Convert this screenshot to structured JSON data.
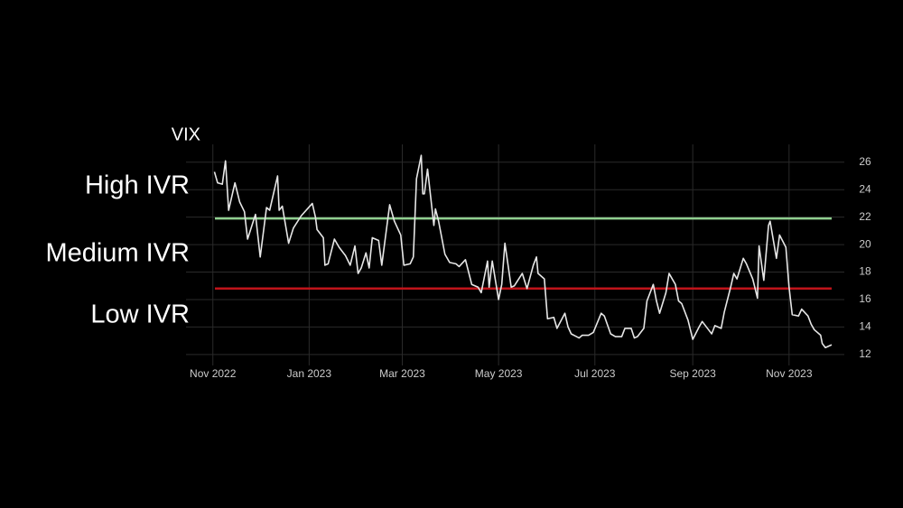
{
  "chart_data": {
    "type": "line",
    "ylabel": "VIX",
    "annotations": [
      "High IVR",
      "Medium IVR",
      "Low IVR"
    ],
    "xlim": [
      "2022-10-15",
      "2023-12-06"
    ],
    "xticks": [
      {
        "value": "2022-11-01",
        "label": "Nov 2022"
      },
      {
        "value": "2023-01-01",
        "label": "Jan 2023"
      },
      {
        "value": "2023-03-01",
        "label": "Mar 2023"
      },
      {
        "value": "2023-05-01",
        "label": "May 2023"
      },
      {
        "value": "2023-07-01",
        "label": "Jul 2023"
      },
      {
        "value": "2023-09-01",
        "label": "Sep 2023"
      },
      {
        "value": "2023-11-01",
        "label": "Nov 2023"
      }
    ],
    "ylim": [
      11.2,
      27.3
    ],
    "yticks": [
      12,
      14,
      16,
      18,
      20,
      22,
      24,
      26
    ],
    "grid": true,
    "hlines": [
      {
        "value": 21.9,
        "color": "#8fcf8f"
      },
      {
        "value": 16.8,
        "color": "#c0141a"
      }
    ],
    "x": [
      "2022-11-02",
      "2022-11-04",
      "2022-11-07",
      "2022-11-09",
      "2022-11-11",
      "2022-11-15",
      "2022-11-18",
      "2022-11-21",
      "2022-11-23",
      "2022-11-28",
      "2022-12-01",
      "2022-12-05",
      "2022-12-07",
      "2022-12-12",
      "2022-12-13",
      "2022-12-15",
      "2022-12-19",
      "2022-12-22",
      "2022-12-27",
      "2023-01-03",
      "2023-01-05",
      "2023-01-06",
      "2023-01-10",
      "2023-01-11",
      "2023-01-13",
      "2023-01-17",
      "2023-01-20",
      "2023-01-24",
      "2023-01-27",
      "2023-01-30",
      "2023-02-01",
      "2023-02-03",
      "2023-02-06",
      "2023-02-08",
      "2023-02-10",
      "2023-02-14",
      "2023-02-16",
      "2023-02-21",
      "2023-02-24",
      "2023-02-28",
      "2023-03-02",
      "2023-03-06",
      "2023-03-08",
      "2023-03-10",
      "2023-03-13",
      "2023-03-14",
      "2023-03-15",
      "2023-03-17",
      "2023-03-21",
      "2023-03-22",
      "2023-03-24",
      "2023-03-28",
      "2023-03-31",
      "2023-04-04",
      "2023-04-06",
      "2023-04-10",
      "2023-04-14",
      "2023-04-18",
      "2023-04-20",
      "2023-04-24",
      "2023-04-25",
      "2023-04-27",
      "2023-05-01",
      "2023-05-03",
      "2023-05-05",
      "2023-05-09",
      "2023-05-11",
      "2023-05-16",
      "2023-05-19",
      "2023-05-23",
      "2023-05-25",
      "2023-05-26",
      "2023-05-30",
      "2023-06-01",
      "2023-06-05",
      "2023-06-07",
      "2023-06-12",
      "2023-06-14",
      "2023-06-16",
      "2023-06-21",
      "2023-06-23",
      "2023-06-27",
      "2023-06-30",
      "2023-07-05",
      "2023-07-07",
      "2023-07-11",
      "2023-07-14",
      "2023-07-18",
      "2023-07-20",
      "2023-07-24",
      "2023-07-26",
      "2023-07-28",
      "2023-08-01",
      "2023-08-03",
      "2023-08-07",
      "2023-08-09",
      "2023-08-11",
      "2023-08-15",
      "2023-08-17",
      "2023-08-21",
      "2023-08-23",
      "2023-08-25",
      "2023-08-29",
      "2023-09-01",
      "2023-09-05",
      "2023-09-07",
      "2023-09-11",
      "2023-09-13",
      "2023-09-15",
      "2023-09-19",
      "2023-09-21",
      "2023-09-25",
      "2023-09-27",
      "2023-09-29",
      "2023-10-03",
      "2023-10-05",
      "2023-10-09",
      "2023-10-12",
      "2023-10-13",
      "2023-10-16",
      "2023-10-19",
      "2023-10-20",
      "2023-10-24",
      "2023-10-26",
      "2023-10-30",
      "2023-11-01",
      "2023-11-03",
      "2023-11-07",
      "2023-11-09",
      "2023-11-13",
      "2023-11-15",
      "2023-11-17",
      "2023-11-21",
      "2023-11-22",
      "2023-11-24",
      "2023-11-28"
    ],
    "series": [
      {
        "name": "VIX",
        "color": "#e6e6e6",
        "values": [
          25.3,
          24.5,
          24.4,
          26.1,
          22.5,
          24.5,
          23.1,
          22.4,
          20.4,
          22.2,
          19.1,
          22.7,
          22.5,
          25.0,
          22.5,
          22.8,
          20.1,
          21.2,
          22.1,
          23.0,
          22.0,
          21.1,
          20.5,
          18.5,
          18.6,
          20.4,
          19.8,
          19.2,
          18.5,
          19.9,
          17.9,
          18.3,
          19.4,
          18.3,
          20.5,
          20.3,
          18.5,
          22.9,
          21.7,
          20.7,
          18.5,
          18.6,
          19.1,
          24.8,
          26.5,
          23.7,
          23.7,
          25.5,
          21.4,
          22.6,
          21.7,
          19.3,
          18.7,
          18.6,
          18.4,
          18.9,
          17.1,
          16.9,
          16.5,
          18.8,
          16.9,
          18.8,
          16.0,
          17.1,
          20.1,
          16.9,
          17.0,
          17.9,
          16.8,
          18.5,
          19.1,
          17.9,
          17.5,
          14.6,
          14.7,
          13.9,
          15.0,
          14.0,
          13.5,
          13.2,
          13.4,
          13.4,
          13.6,
          15.0,
          14.8,
          13.5,
          13.3,
          13.3,
          13.9,
          13.9,
          13.2,
          13.3,
          13.9,
          15.9,
          17.1,
          15.9,
          15.0,
          16.5,
          17.9,
          17.1,
          15.9,
          15.7,
          14.5,
          13.1,
          14.0,
          14.4,
          13.8,
          13.5,
          14.1,
          13.9,
          15.1,
          16.9,
          17.9,
          17.5,
          19.0,
          18.6,
          17.5,
          16.1,
          19.9,
          17.4,
          21.4,
          21.7,
          19.0,
          20.7,
          19.8,
          16.9,
          14.9,
          14.8,
          15.3,
          14.8,
          14.2,
          13.8,
          13.4,
          12.8,
          12.5,
          12.7
        ]
      }
    ]
  }
}
